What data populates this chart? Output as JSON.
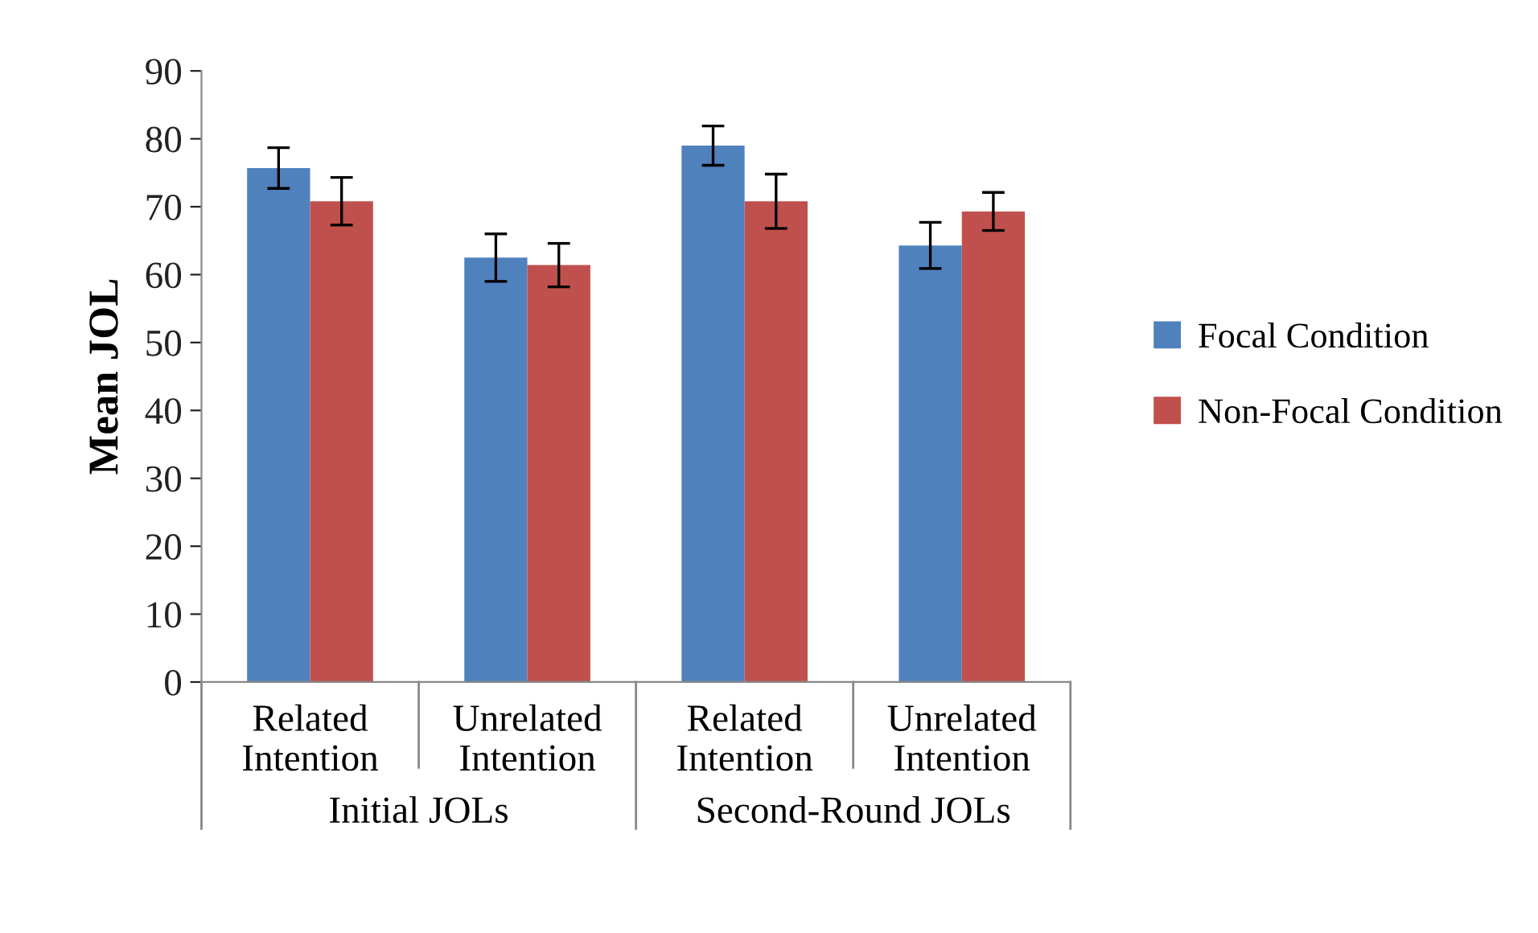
{
  "chart_data": {
    "type": "bar",
    "ylabel": "Mean JOL",
    "categories": [
      "Related\nIntention",
      "Unrelated\nIntention",
      "Related\nIntention",
      "Unrelated\nIntention"
    ],
    "series": [
      {
        "name": "Focal Condition",
        "color": "#4f81bd",
        "values": [
          75.7,
          62.5,
          79.0,
          64.3
        ],
        "errors": [
          3.0,
          3.5,
          2.9,
          3.4
        ]
      },
      {
        "name": "Non-Focal Condition",
        "color": "#c0504d",
        "values": [
          70.8,
          61.4,
          70.8,
          69.3
        ],
        "errors": [
          3.5,
          3.2,
          4.0,
          2.8
        ]
      }
    ],
    "annotations": [
      "Initial JOLs",
      "Second-Round JOLs"
    ],
    "ylim": [
      0,
      90
    ],
    "yticks": [
      0,
      10,
      20,
      30,
      40,
      50,
      60,
      70,
      80,
      90
    ],
    "grid": false,
    "legend": "right"
  }
}
